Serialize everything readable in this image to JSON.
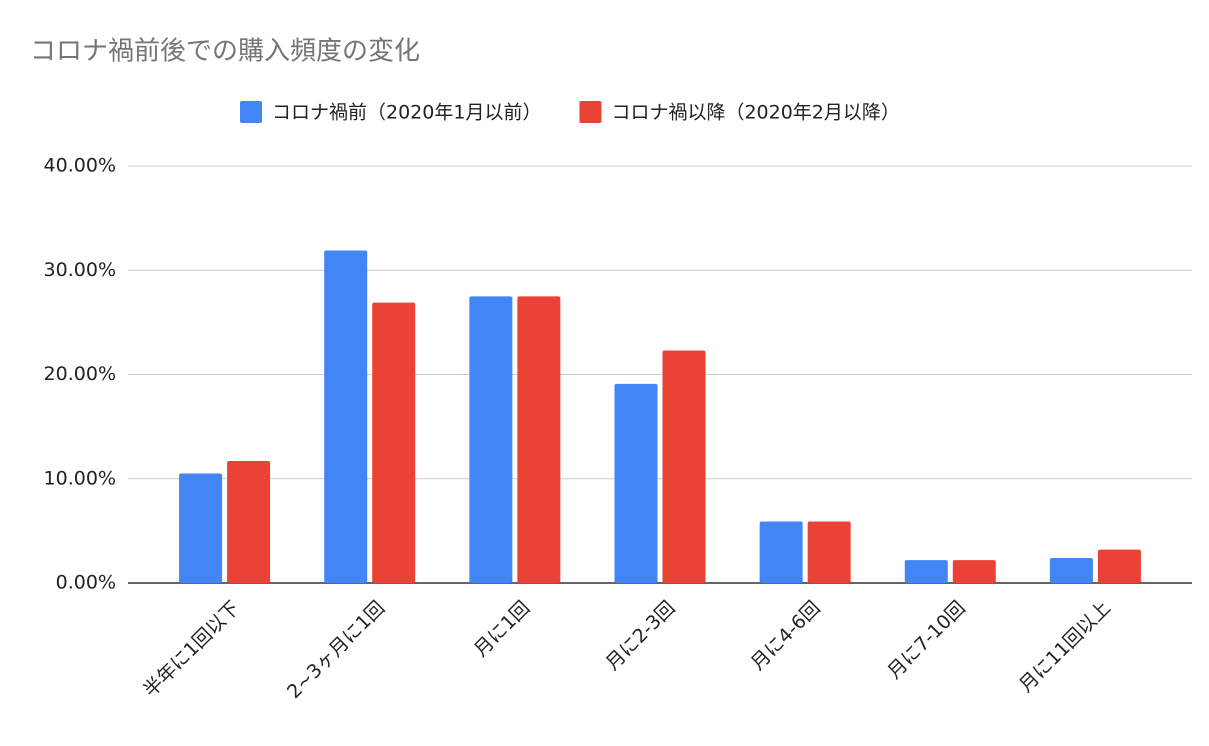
{
  "chart_data": {
    "type": "bar",
    "title": "コロナ禍前後での購入頻度の変化",
    "categories": [
      "半年に1回以下",
      "2~3ヶ月に1回",
      "月に1回",
      "月に2-3回",
      "月に4-6回",
      "月に7-10回",
      "月に11回以上"
    ],
    "series": [
      {
        "name": "コロナ禍前（2020年1月以前）",
        "color": "#4285f4",
        "values": [
          10.5,
          31.9,
          27.5,
          19.1,
          5.9,
          2.2,
          2.4
        ]
      },
      {
        "name": "コロナ禍以降（2020年2月以降）",
        "color": "#ea4335",
        "values": [
          11.7,
          26.9,
          27.5,
          22.3,
          5.9,
          2.2,
          3.2
        ]
      }
    ],
    "ylim": [
      0,
      40
    ],
    "yticks": [
      {
        "value": 0,
        "label": "0.00%"
      },
      {
        "value": 10,
        "label": "10.00%"
      },
      {
        "value": 20,
        "label": "20.00%"
      },
      {
        "value": 30,
        "label": "30.00%"
      },
      {
        "value": 40,
        "label": "40.00%"
      }
    ],
    "grid": true,
    "legend": "top"
  }
}
